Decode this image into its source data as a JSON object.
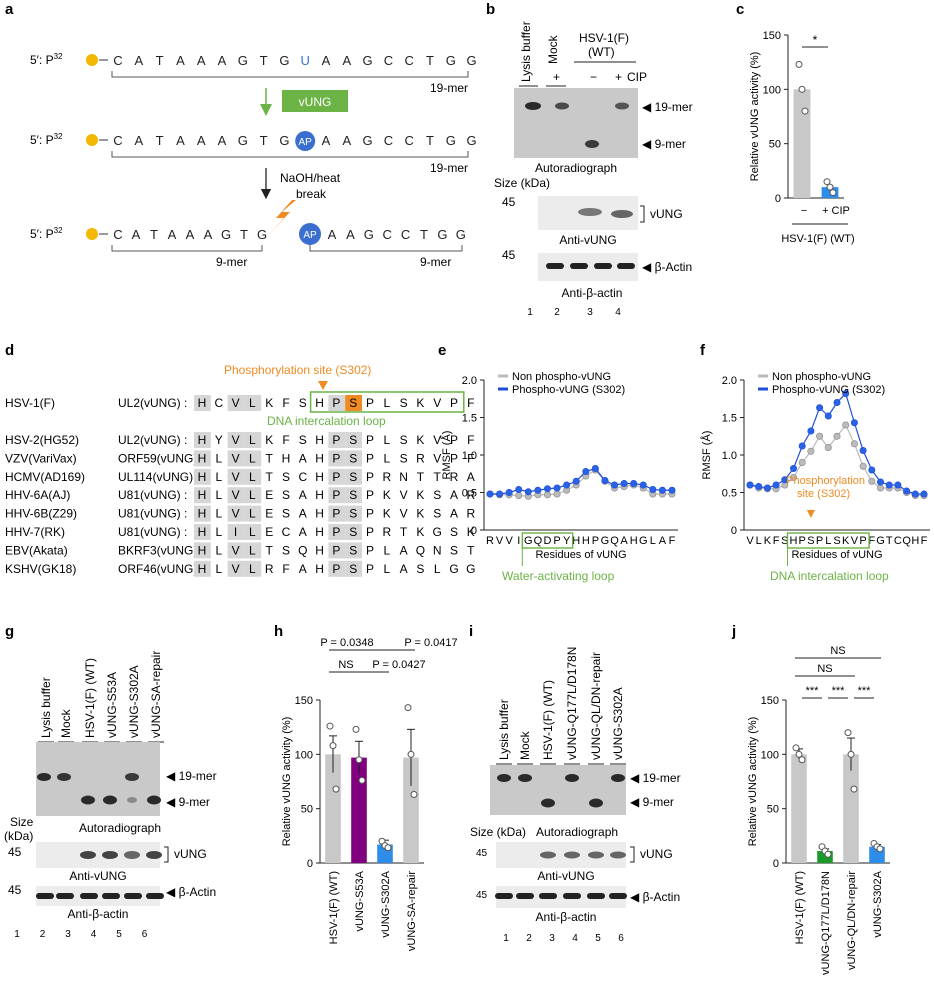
{
  "panels": {
    "a": {
      "letter": "a",
      "prefix": "5′: P",
      "sup": "32",
      "seq_top": [
        "C",
        "A",
        "T",
        "A",
        "A",
        "A",
        "G",
        "T",
        "G",
        "U",
        "A",
        "A",
        "G",
        "C",
        "C",
        "T",
        "G",
        "G"
      ],
      "seq_mid": [
        "C",
        "A",
        "T",
        "A",
        "A",
        "A",
        "G",
        "T",
        "G",
        "AP",
        "A",
        "A",
        "G",
        "C",
        "C",
        "T",
        "G",
        "G"
      ],
      "seq_bot_left": [
        "C",
        "A",
        "T",
        "A",
        "A",
        "A",
        "G",
        "T",
        "G"
      ],
      "seq_bot_right": [
        "A",
        "A",
        "G",
        "C",
        "C",
        "T",
        "G",
        "G"
      ],
      "ap_label": "AP",
      "len19": "19-mer",
      "len9": "9-mer",
      "enzyme": "vUNG",
      "break_label_1": "NaOH/heat",
      "break_label_2": "break",
      "colors": {
        "uracil": "#3a6fd0",
        "ap": "#3a6fd0",
        "enzyme": "#6cb345",
        "p32": "#f5b800",
        "bolt": "#f08a24"
      }
    },
    "b": {
      "letter": "b",
      "lanes": [
        "Lysis buffer",
        "Mock",
        "HSV-1(F)",
        "(WT)"
      ],
      "signs": [
        "+",
        "−",
        "+"
      ],
      "cip": "CIP",
      "bands": [
        "19-mer",
        "9-mer"
      ],
      "autoradiograph": "Autoradiograph",
      "size": "Size (kDa)",
      "mw": [
        "45",
        "45"
      ],
      "vung": "vUNG",
      "anti_vung": "Anti-vUNG",
      "actin": "β-Actin",
      "anti_actin": "Anti-β-actin",
      "lane_numbers": [
        "1",
        "2",
        "3",
        "4"
      ]
    },
    "c": {
      "letter": "c",
      "chart_data": {
        "type": "bar",
        "categories": [
          "−",
          "+ CIP"
        ],
        "values": [
          100,
          10
        ],
        "points": [
          [
            123,
            100,
            80
          ],
          [
            15,
            10,
            5
          ]
        ],
        "ylim": [
          0,
          150
        ],
        "yticks": [
          "0",
          "50",
          "100",
          "150"
        ],
        "ylabel": "Relative vUNG activity (%)",
        "xlabel": "HSV-1(F) (WT)",
        "significance": "*",
        "colors": [
          "#c8c8c8",
          "#2e8de8"
        ]
      }
    },
    "d": {
      "letter": "d",
      "phospho_site": "Phosphorylation site (S302)",
      "loop": "DNA intercalation loop",
      "rows": [
        {
          "virus": "HSV-1(F)",
          "gene": "UL2(vUNG) :",
          "seq": [
            "H",
            "C",
            "V",
            "L",
            "K",
            "F",
            "S",
            "H",
            "P",
            "S",
            "P",
            "L",
            "S",
            "K",
            "V",
            "P",
            "F"
          ]
        },
        {
          "virus": "HSV-2(HG52)",
          "gene": "UL2(vUNG) :",
          "seq": [
            "H",
            "Y",
            "V",
            "L",
            "K",
            "F",
            "S",
            "H",
            "P",
            "S",
            "P",
            "L",
            "S",
            "K",
            "V",
            "P",
            "F"
          ]
        },
        {
          "virus": "VZV(VariVax)",
          "gene": "ORF59(vUNG) :",
          "seq": [
            "H",
            "L",
            "V",
            "L",
            "T",
            "H",
            "A",
            "H",
            "P",
            "S",
            "P",
            "L",
            "S",
            "R",
            "V",
            "P",
            "F"
          ]
        },
        {
          "virus": "HCMV(AD169)",
          "gene": "UL114(vUNG) :",
          "seq": [
            "H",
            "L",
            "V",
            "L",
            "T",
            "S",
            "C",
            "H",
            "P",
            "S",
            "P",
            "R",
            "N",
            "T",
            "T",
            "R",
            "A"
          ]
        },
        {
          "virus": "HHV-6A(AJ)",
          "gene": "U81(vUNG) :",
          "seq": [
            "H",
            "L",
            "V",
            "L",
            "E",
            "S",
            "A",
            "H",
            "P",
            "S",
            "P",
            "K",
            "V",
            "K",
            "S",
            "A",
            "R"
          ]
        },
        {
          "virus": "HHV-6B(Z29)",
          "gene": "U81(vUNG) :",
          "seq": [
            "H",
            "L",
            "V",
            "L",
            "E",
            "S",
            "A",
            "H",
            "P",
            "S",
            "P",
            "K",
            "V",
            "K",
            "S",
            "A",
            "R"
          ]
        },
        {
          "virus": "HHV-7(RK)",
          "gene": "U81(vUNG) :",
          "seq": [
            "H",
            "L",
            "I",
            "L",
            "E",
            "C",
            "A",
            "H",
            "P",
            "S",
            "P",
            "R",
            "T",
            "K",
            "G",
            "S",
            "K"
          ]
        },
        {
          "virus": "EBV(Akata)",
          "gene": "BKRF3(vUNG) :",
          "seq": [
            "H",
            "L",
            "V",
            "L",
            "T",
            "S",
            "Q",
            "H",
            "P",
            "S",
            "P",
            "L",
            "A",
            "Q",
            "N",
            "S",
            "T"
          ]
        },
        {
          "virus": "KSHV(GK18)",
          "gene": "ORF46(vUNG) :",
          "seq": [
            "H",
            "L",
            "V",
            "L",
            "R",
            "F",
            "A",
            "H",
            "P",
            "S",
            "P",
            "L",
            "A",
            "S",
            "L",
            "G",
            "G"
          ]
        }
      ]
    },
    "e": {
      "letter": "e",
      "chart_data": {
        "type": "line",
        "categories": [
          "R",
          "V",
          "V",
          "I",
          "G",
          "Q",
          "D",
          "P",
          "Y",
          "H",
          "H",
          "P",
          "G",
          "Q",
          "A",
          "H",
          "G",
          "L",
          "A",
          "F"
        ],
        "series": [
          {
            "name": "Non phospho-vUNG",
            "values": [
              0.48,
              0.47,
              0.47,
              0.46,
              0.45,
              0.47,
              0.47,
              0.48,
              0.53,
              0.6,
              0.72,
              0.8,
              0.65,
              0.56,
              0.58,
              0.6,
              0.56,
              0.48,
              0.48,
              0.48
            ],
            "color": "#bbbbbb"
          },
          {
            "name": "Phospho-vUNG (S302)",
            "values": [
              0.48,
              0.48,
              0.5,
              0.54,
              0.51,
              0.53,
              0.55,
              0.56,
              0.6,
              0.65,
              0.78,
              0.82,
              0.66,
              0.6,
              0.62,
              0.62,
              0.6,
              0.54,
              0.53,
              0.53
            ],
            "color": "#1f4fd8"
          }
        ],
        "ylim": [
          0,
          2.0
        ],
        "yticks": [
          "0",
          "0.5",
          "1.0",
          "1.5",
          "2.0"
        ],
        "ylabel": "RMSF (Å)",
        "xlabel": "Residues of vUNG",
        "loop": "Water-activating loop"
      }
    },
    "f": {
      "letter": "f",
      "chart_data": {
        "type": "line",
        "categories": [
          "V",
          "L",
          "K",
          "F",
          "S",
          "H",
          "P",
          "S",
          "P",
          "L",
          "S",
          "K",
          "V",
          "P",
          "F",
          "G",
          "T",
          "C",
          "Q",
          "H",
          "F"
        ],
        "series": [
          {
            "name": "Non phospho-vUNG",
            "values": [
              0.6,
              0.56,
              0.55,
              0.55,
              0.6,
              0.7,
              0.9,
              1.05,
              1.25,
              1.1,
              1.25,
              1.4,
              1.15,
              0.85,
              0.65,
              0.56,
              0.56,
              0.56,
              0.5,
              0.46,
              0.46
            ],
            "color": "#bbbbbb"
          },
          {
            "name": "Phospho-vUNG (S302)",
            "values": [
              0.6,
              0.58,
              0.56,
              0.6,
              0.67,
              0.82,
              1.12,
              1.32,
              1.63,
              1.52,
              1.7,
              1.82,
              1.43,
              1.06,
              0.8,
              0.64,
              0.6,
              0.6,
              0.52,
              0.48,
              0.48
            ],
            "color": "#1f4fd8"
          }
        ],
        "ylim": [
          0,
          2.0
        ],
        "yticks": [
          "0",
          "0.5",
          "1.0",
          "1.5",
          "2.0"
        ],
        "ylabel": "RMSF (Å)",
        "xlabel": "Residues of vUNG",
        "site_1": "Phosphorylation",
        "site_2": "site (S302)",
        "loop": "DNA intercalation loop"
      }
    },
    "g": {
      "letter": "g",
      "lanes": [
        "Lysis buffer",
        "Mock",
        "HSV-1(F) (WT)",
        "vUNG-S53A",
        "vUNG-S302A",
        "vUNG-SA-repair"
      ],
      "bands": [
        "19-mer",
        "9-mer"
      ],
      "size_1": "Size",
      "size_2": "(kDa)",
      "autoradiograph": "Autoradiograph",
      "mw": [
        "45",
        "45"
      ],
      "vung": "vUNG",
      "anti_vung": "Anti-vUNG",
      "actin": "β-Actin",
      "anti_actin": "Anti-β-actin",
      "lane_numbers": [
        "1",
        "2",
        "3",
        "4",
        "5",
        "6"
      ]
    },
    "h": {
      "letter": "h",
      "chart_data": {
        "type": "bar",
        "categories": [
          "HSV-1(F) (WT)",
          "vUNG-S53A",
          "vUNG-S302A",
          "vUNG-SA-repair"
        ],
        "values": [
          100,
          97,
          17,
          97
        ],
        "errors": [
          17,
          15,
          4,
          26
        ],
        "points": [
          [
            126,
            108,
            68
          ],
          [
            123,
            95,
            76
          ],
          [
            20,
            16,
            14
          ],
          [
            143,
            100,
            63
          ]
        ],
        "colors": [
          "#c8c8c8",
          "#800080",
          "#2e8de8",
          "#c8c8c8"
        ],
        "ylim": [
          0,
          150
        ],
        "yticks": [
          "0",
          "50",
          "100",
          "150"
        ],
        "ylabel": "Relative vUNG activity (%)",
        "stats": [
          "P = 0.0348",
          "P = 0.0417",
          "NS",
          "P = 0.0427"
        ]
      }
    },
    "i": {
      "letter": "i",
      "lanes": [
        "Lysis buffer",
        "Mock",
        "HSV-1(F) (WT)",
        "vUNG-Q177L/D178N",
        "vUNG-QL/DN-repair",
        "vUNG-S302A"
      ],
      "bands": [
        "19-mer",
        "9-mer"
      ],
      "size": "Size (kDa)",
      "autoradiograph": "Autoradiograph",
      "mw": [
        "45",
        "45"
      ],
      "vung": "vUNG",
      "anti_vung": "Anti-vUNG",
      "actin": "β-Actin",
      "anti_actin": "Anti-β-actin",
      "lane_numbers": [
        "1",
        "2",
        "3",
        "4",
        "5",
        "6"
      ]
    },
    "j": {
      "letter": "j",
      "chart_data": {
        "type": "bar",
        "categories": [
          "HSV-1(F) (WT)",
          "vUNG-Q177L/D178N",
          "vUNG-QL/DN-repair",
          "vUNG-S302A"
        ],
        "values": [
          100,
          11,
          100,
          15
        ],
        "errors": [
          5,
          2,
          15,
          2
        ],
        "points": [
          [
            106,
            100,
            95
          ],
          [
            15,
            11,
            8
          ],
          [
            120,
            100,
            68
          ],
          [
            18,
            15,
            13
          ]
        ],
        "colors": [
          "#c8c8c8",
          "#1a9a2a",
          "#c8c8c8",
          "#2e8de8"
        ],
        "ylim": [
          0,
          150
        ],
        "yticks": [
          "0",
          "50",
          "100",
          "150"
        ],
        "ylabel": "Relative vUNG activity (%)",
        "stats": [
          "NS",
          "NS",
          "***",
          "***",
          "***"
        ]
      }
    }
  }
}
